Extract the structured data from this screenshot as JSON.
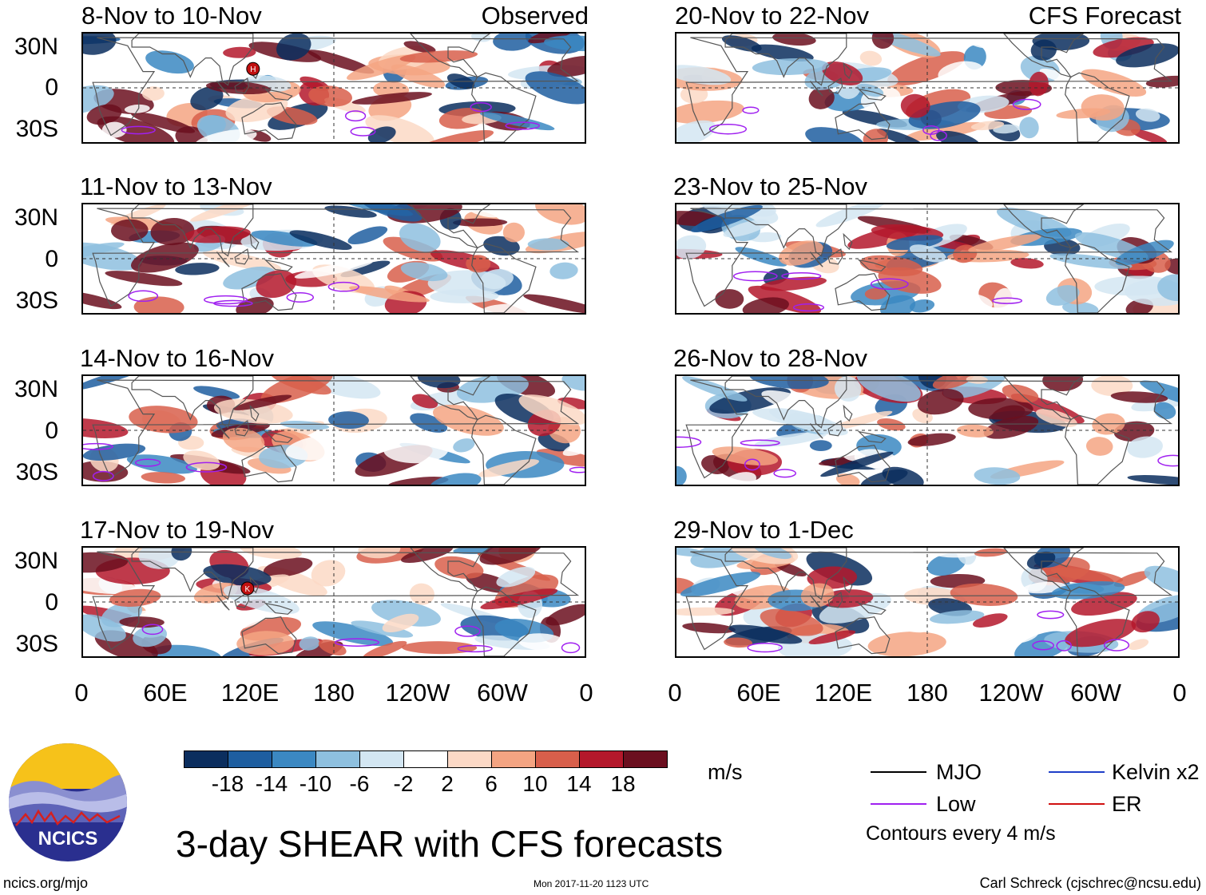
{
  "panels": [
    {
      "title": "8-Nov to 10-Nov",
      "tag": "Observed",
      "storms": [
        {
          "letter": "H",
          "lon": 122,
          "lat": 14
        }
      ]
    },
    {
      "title": "11-Nov to 13-Nov",
      "tag": "",
      "storms": []
    },
    {
      "title": "14-Nov to 16-Nov",
      "tag": "",
      "storms": []
    },
    {
      "title": "17-Nov to 19-Nov",
      "tag": "",
      "storms": [
        {
          "letter": "K",
          "lon": 118,
          "lat": 10
        }
      ]
    },
    {
      "title": "20-Nov to 22-Nov",
      "tag": "CFS Forecast",
      "storms": []
    },
    {
      "title": "23-Nov to 25-Nov",
      "tag": "",
      "storms": []
    },
    {
      "title": "26-Nov to 28-Nov",
      "tag": "",
      "storms": []
    },
    {
      "title": "29-Nov to 1-Dec",
      "tag": "",
      "storms": []
    }
  ],
  "lat_labels": [
    "30N",
    "0",
    "30S"
  ],
  "lon_labels": [
    "0",
    "60E",
    "120E",
    "180",
    "120W",
    "60W",
    "0"
  ],
  "colorbar": {
    "colors": [
      "#0b2e5e",
      "#1e5ea0",
      "#3b88c2",
      "#8ec0df",
      "#d3e6f2",
      "#ffffff",
      "#fcd9c6",
      "#f4a482",
      "#d85f4b",
      "#b4182b",
      "#6b0f1f"
    ],
    "labels": [
      "-18",
      "-14",
      "-10",
      "-6",
      "-2",
      "2",
      "6",
      "10",
      "14",
      "18"
    ],
    "units": "m/s"
  },
  "legend": {
    "mjo": "MJO",
    "mjo_color": "#000000",
    "low": "Low",
    "low_color": "#a020f0",
    "kelvin": "Kelvin x2",
    "kelvin_color": "#1f3fc8",
    "er": "ER",
    "er_color": "#d01010",
    "contours": "Contours every 4 m/s"
  },
  "logo": {
    "text": "NCICS"
  },
  "footer": {
    "title": "3-day SHEAR with CFS forecasts",
    "url": "ncics.org/mjo",
    "timestamp": "Mon 2017-11-20 1123 UTC",
    "credit": "Carl Schreck (cjschrec@ncsu.edu)"
  }
}
